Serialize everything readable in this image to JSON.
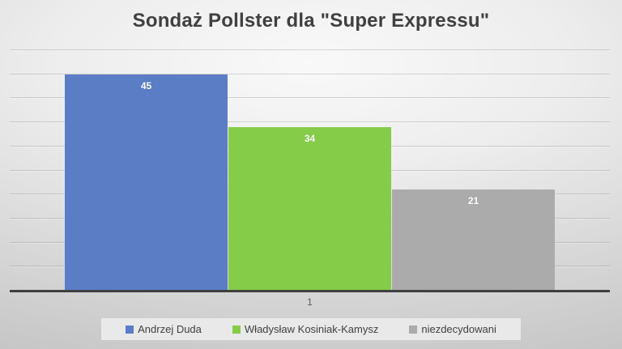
{
  "chart_data": {
    "type": "bar",
    "title": "Sondaż Pollster dla \"Super Expressu\"",
    "categories": [
      "1"
    ],
    "series": [
      {
        "name": "Andrzej Duda",
        "values": [
          45
        ],
        "color": "#5A7DC6"
      },
      {
        "name": "Władysław Kosiniak-Kamysz",
        "values": [
          34
        ],
        "color": "#85CC49"
      },
      {
        "name": "niezdecydowani",
        "values": [
          21
        ],
        "color": "#ABABAB"
      }
    ],
    "ylim": [
      0,
      50
    ],
    "gridline_step": 5,
    "grid": true,
    "y_tick_labels_visible": false,
    "data_labels": "inside-end",
    "data_label_color": "#FFFFFF",
    "legend_position": "bottom",
    "xlabel": "",
    "ylabel": ""
  },
  "colors": {
    "title_text": "#404040",
    "axis_line": "#3F3F3F",
    "gridline": "#B9B9B9",
    "category_label": "#595959",
    "legend_background": "#E9E9E9",
    "legend_text": "#404040",
    "background_light": "#F9F9F9",
    "background_dark": "#C6C6C6"
  }
}
